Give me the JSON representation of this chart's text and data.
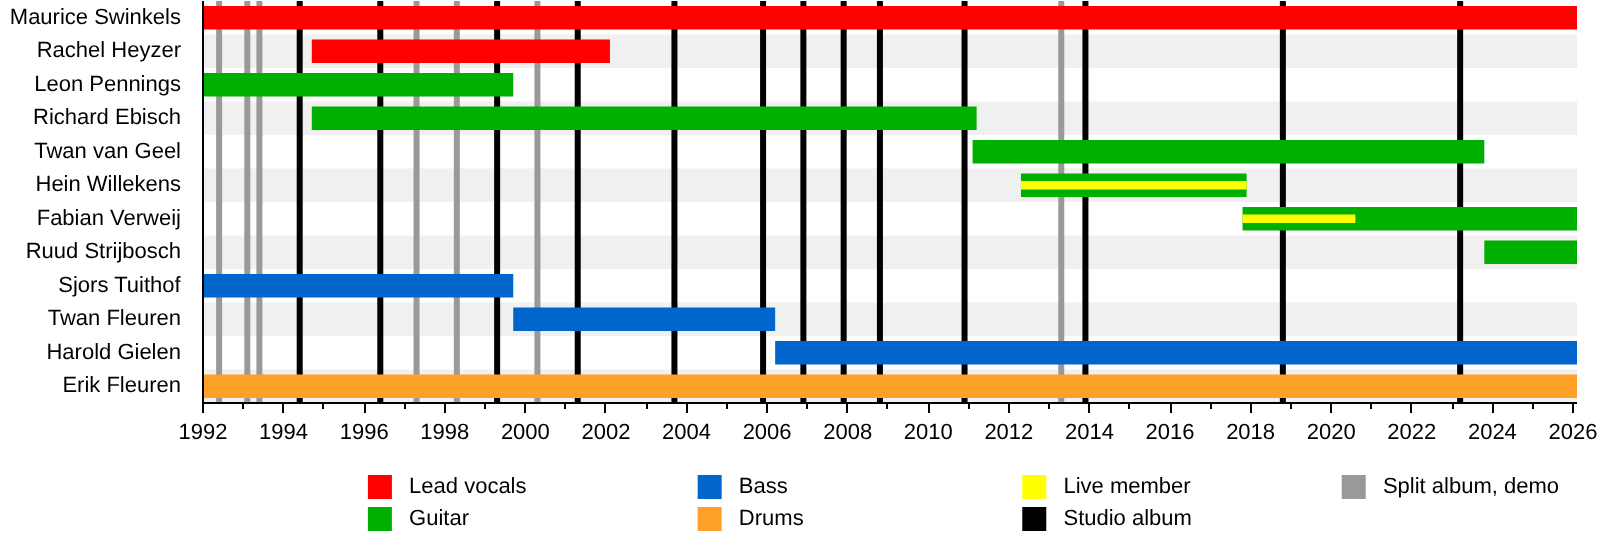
{
  "chart_data": {
    "type": "bar",
    "orientation": "horizontal",
    "categories": [
      "Maurice Swinkels",
      "Rachel Heyzer",
      "Leon Pennings",
      "Richard Ebisch",
      "Twan van Geel",
      "Hein Willekens",
      "Fabian Verweij",
      "Ruud Strijbosch",
      "Sjors Tuithof",
      "Twan Fleuren",
      "Harold Gielen",
      "Erik Fleuren"
    ],
    "series": [
      {
        "name": "Lead vocals",
        "color": "#ff0000",
        "base": [
          1992,
          1994.7,
          null,
          null,
          null,
          null,
          null,
          null,
          null,
          null,
          null,
          null
        ],
        "values": [
          34.1,
          7.4,
          null,
          null,
          null,
          null,
          null,
          null,
          null,
          null,
          null,
          null
        ]
      },
      {
        "name": "Guitar",
        "color": "#00b000",
        "base": [
          null,
          null,
          1992,
          1994.7,
          2011.1,
          2012.3,
          2017.8,
          2023.8,
          null,
          null,
          null,
          null
        ],
        "values": [
          null,
          null,
          7.7,
          16.5,
          12.7,
          5.6,
          8.3,
          2.3,
          null,
          null,
          null,
          null
        ]
      },
      {
        "name": "Bass",
        "color": "#0066cc",
        "base": [
          null,
          null,
          null,
          null,
          null,
          null,
          null,
          null,
          1992,
          1999.7,
          2006.2,
          null
        ],
        "values": [
          null,
          null,
          null,
          null,
          null,
          null,
          null,
          null,
          7.7,
          6.5,
          19.9,
          null
        ]
      },
      {
        "name": "Drums",
        "color": "#ffa028",
        "base": [
          null,
          null,
          null,
          null,
          null,
          null,
          null,
          null,
          null,
          null,
          null,
          1992
        ],
        "values": [
          null,
          null,
          null,
          null,
          null,
          null,
          null,
          null,
          null,
          null,
          null,
          34.1
        ]
      },
      {
        "name": "Live member",
        "color": "#ffff00",
        "base": [
          null,
          null,
          null,
          null,
          null,
          2012.3,
          2017.8,
          null,
          null,
          null,
          null,
          null
        ],
        "values": [
          null,
          null,
          null,
          null,
          null,
          5.6,
          2.8,
          null,
          null,
          null,
          null,
          null
        ]
      }
    ],
    "ref_lines": [
      {
        "axis": "x",
        "value": 1994.4,
        "label": "Studio album",
        "color": "#000000"
      },
      {
        "axis": "x",
        "value": 1996.4,
        "color": "#000000"
      },
      {
        "axis": "x",
        "value": 1999.3,
        "color": "#000000"
      },
      {
        "axis": "x",
        "value": 2001.3,
        "color": "#000000"
      },
      {
        "axis": "x",
        "value": 2003.7,
        "color": "#000000"
      },
      {
        "axis": "x",
        "value": 2005.9,
        "color": "#000000"
      },
      {
        "axis": "x",
        "value": 2006.9,
        "color": "#000000"
      },
      {
        "axis": "x",
        "value": 2007.9,
        "color": "#000000"
      },
      {
        "axis": "x",
        "value": 2008.8,
        "color": "#000000"
      },
      {
        "axis": "x",
        "value": 2010.9,
        "color": "#000000"
      },
      {
        "axis": "x",
        "value": 2013.9,
        "color": "#000000"
      },
      {
        "axis": "x",
        "value": 2018.8,
        "color": "#000000"
      },
      {
        "axis": "x",
        "value": 2023.2,
        "color": "#000000"
      },
      {
        "axis": "x",
        "value": 1992.4,
        "label": "Split album, demo",
        "color": "#999999"
      },
      {
        "axis": "x",
        "value": 1993.1,
        "color": "#999999"
      },
      {
        "axis": "x",
        "value": 1993.4,
        "color": "#999999"
      },
      {
        "axis": "x",
        "value": 1997.3,
        "color": "#999999"
      },
      {
        "axis": "x",
        "value": 1998.3,
        "color": "#999999"
      },
      {
        "axis": "x",
        "value": 2000.3,
        "color": "#999999"
      },
      {
        "axis": "x",
        "value": 2013.3,
        "color": "#999999"
      }
    ],
    "xlim": [
      1992,
      2026.1
    ],
    "xticks": [
      1992,
      1994,
      1996,
      1998,
      2000,
      2002,
      2004,
      2006,
      2008,
      2010,
      2012,
      2014,
      2016,
      2018,
      2020,
      2022,
      2024,
      2026
    ],
    "legend": "bottom",
    "grid": false
  }
}
